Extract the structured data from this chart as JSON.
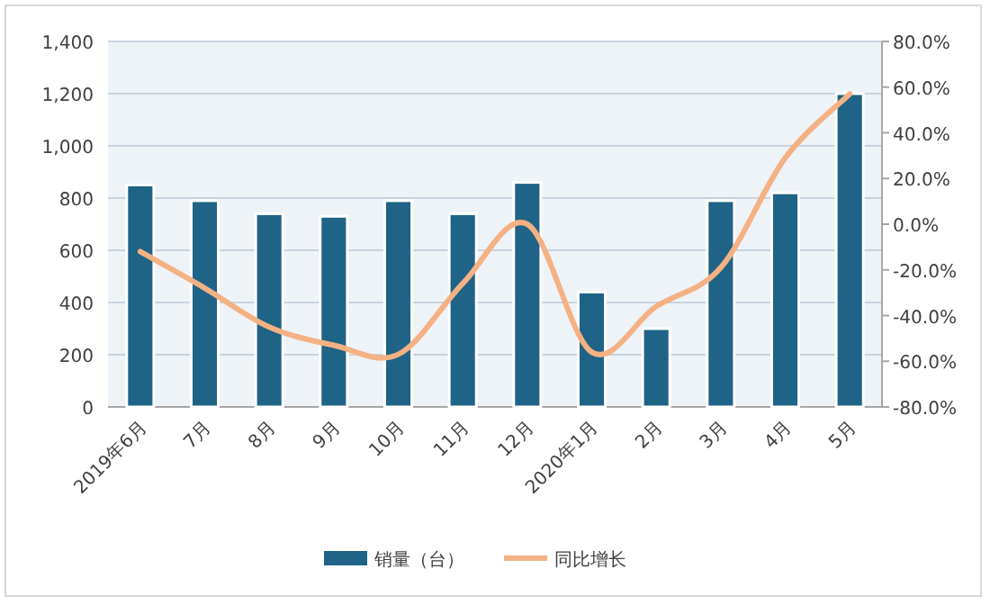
{
  "chart_data": {
    "type": "bar",
    "categories": [
      "2019年6月",
      "7月",
      "8月",
      "9月",
      "10月",
      "11月",
      "12月",
      "2020年1月",
      "2月",
      "3月",
      "4月",
      "5月"
    ],
    "series": [
      {
        "name": "销量（台）",
        "color": "#1f6386",
        "values": [
          850,
          790,
          740,
          730,
          790,
          740,
          860,
          440,
          300,
          790,
          820,
          1200
        ]
      },
      {
        "name": "同比增长",
        "type": "line",
        "axis": "y2",
        "color": "#f4b183",
        "values": [
          -12,
          -28,
          -45,
          -53,
          -57,
          -26,
          0,
          -56,
          -36,
          -19,
          29,
          57
        ]
      }
    ],
    "ylim": [
      0,
      1400
    ],
    "yticks": [
      {
        "value": 0,
        "label": "0"
      },
      {
        "value": 200,
        "label": "200"
      },
      {
        "value": 400,
        "label": "400"
      },
      {
        "value": 600,
        "label": "600"
      },
      {
        "value": 800,
        "label": "800"
      },
      {
        "value": 1000,
        "label": "1,000"
      },
      {
        "value": 1200,
        "label": "1,200"
      },
      {
        "value": 1400,
        "label": "1,400"
      }
    ],
    "y2lim": [
      -80,
      80
    ],
    "y2ticks": [
      {
        "value": -80,
        "label": "-80.0%"
      },
      {
        "value": -60,
        "label": "-60.0%"
      },
      {
        "value": -40,
        "label": "-40.0%"
      },
      {
        "value": -20,
        "label": "-20.0%"
      },
      {
        "value": 0,
        "label": "0.0%"
      },
      {
        "value": 20,
        "label": "20.0%"
      },
      {
        "value": 40,
        "label": "40.0%"
      },
      {
        "value": 60,
        "label": "60.0%"
      },
      {
        "value": 80,
        "label": "80.0%"
      }
    ],
    "grid": "y",
    "legend": "bottom",
    "marker": "none",
    "line_style": "solid"
  }
}
